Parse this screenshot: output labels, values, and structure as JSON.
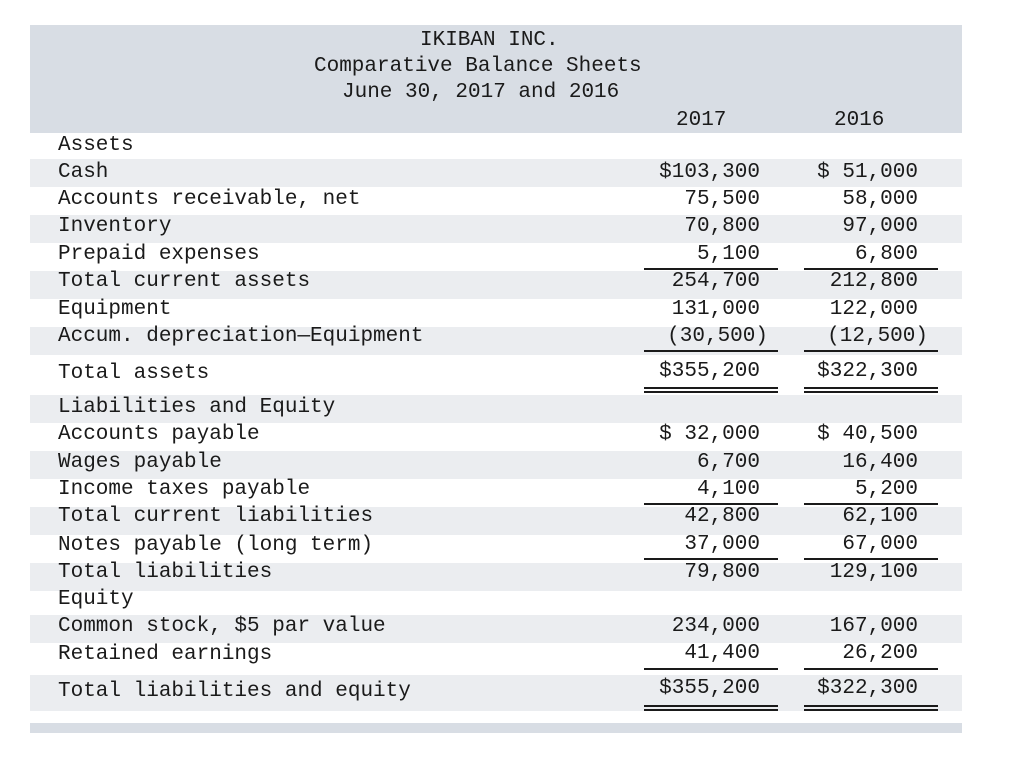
{
  "header": {
    "company": "IKIBAN INC.",
    "statement": "Comparative Balance Sheets",
    "date": "June 30, 2017 and 2016",
    "col_2017": "2017",
    "col_2016": "2016"
  },
  "assets": {
    "heading": "Assets",
    "rows": [
      {
        "label": "Cash",
        "v2017": "$103,300",
        "v2016": "$ 51,000"
      },
      {
        "label": "Accounts receivable, net",
        "v2017": "75,500",
        "v2016": "58,000"
      },
      {
        "label": "Inventory",
        "v2017": "70,800",
        "v2016": "97,000"
      },
      {
        "label": "Prepaid expenses",
        "v2017": "5,100",
        "v2016": "6,800"
      },
      {
        "label": "Total current assets",
        "v2017": "254,700",
        "v2016": "212,800"
      },
      {
        "label": "Equipment",
        "v2017": "131,000",
        "v2016": "122,000"
      },
      {
        "label": "Accum. depreciation—Equipment",
        "v2017": "(30,500)",
        "v2016": "(12,500)"
      }
    ],
    "total": {
      "label": "Total assets",
      "v2017": "$355,200",
      "v2016": "$322,300"
    }
  },
  "liabilities": {
    "heading": "Liabilities and Equity",
    "rows": [
      {
        "label": "Accounts payable",
        "v2017": "$ 32,000",
        "v2016": "$ 40,500"
      },
      {
        "label": "Wages payable",
        "v2017": "6,700",
        "v2016": "16,400"
      },
      {
        "label": "Income taxes payable",
        "v2017": "4,100",
        "v2016": "5,200"
      },
      {
        "label": "Total current liabilities",
        "v2017": "42,800",
        "v2016": "62,100"
      },
      {
        "label": "Notes payable (long term)",
        "v2017": "37,000",
        "v2016": "67,000"
      },
      {
        "label": "Total liabilities",
        "v2017": "79,800",
        "v2016": "129,100"
      }
    ]
  },
  "equity": {
    "heading": "Equity",
    "rows": [
      {
        "label": "Common stock, $5 par value",
        "v2017": "234,000",
        "v2016": "167,000"
      },
      {
        "label": "Retained earnings",
        "v2017": "41,400",
        "v2016": "26,200"
      }
    ],
    "total": {
      "label": "Total liabilities and equity",
      "v2017": "$355,200",
      "v2016": "$322,300"
    }
  }
}
